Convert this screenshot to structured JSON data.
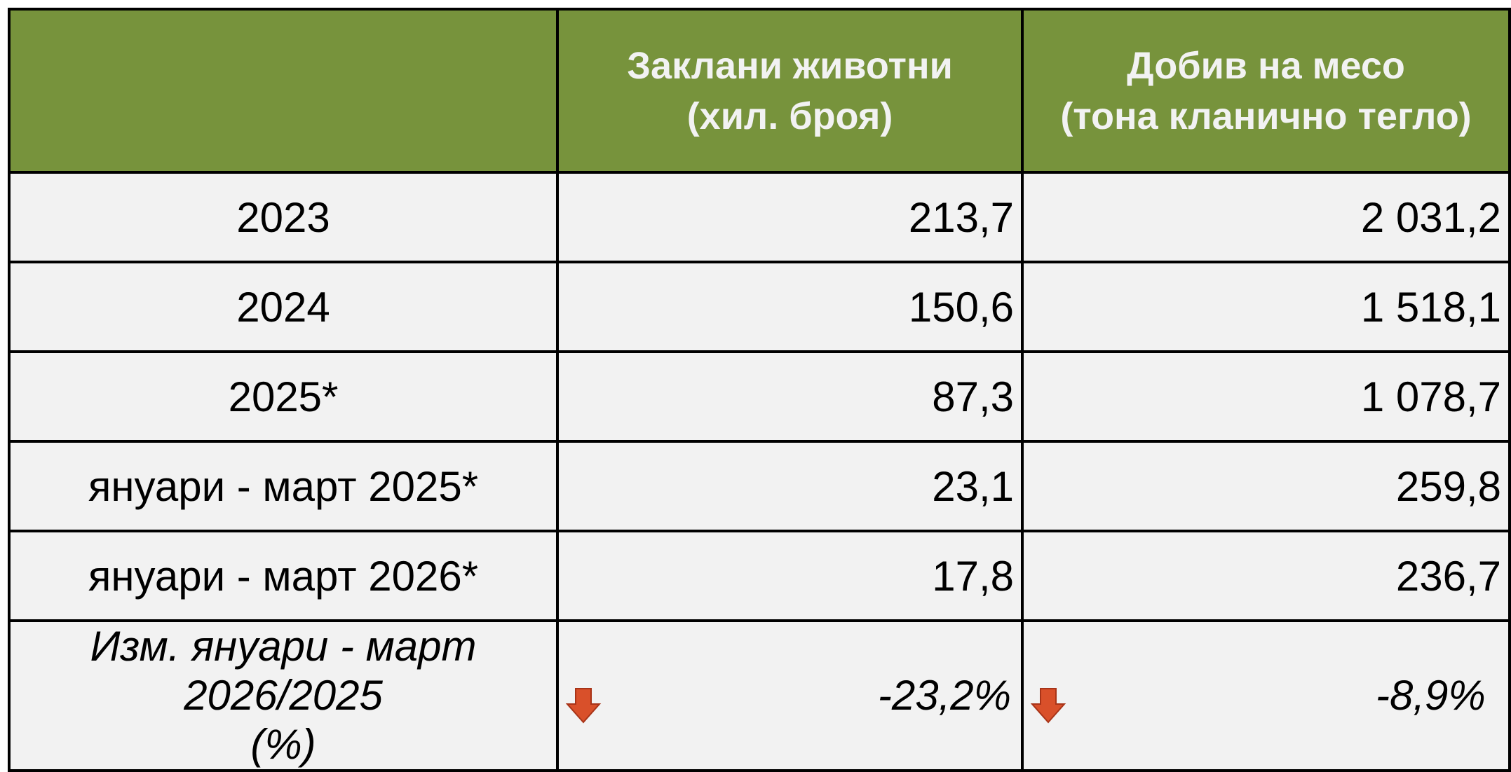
{
  "table": {
    "columns": [
      [
        "Заклани животни",
        "(хил. броя)"
      ],
      [
        "Добив на месо",
        "(тона кланично тегло)"
      ]
    ],
    "rows": [
      [
        "2023",
        "213,7",
        "2 031,2"
      ],
      [
        "2024",
        "150,6",
        "1 518,1"
      ],
      [
        "2025*",
        "87,3",
        "1 078,7"
      ],
      [
        "януари - март 2025*",
        "23,1",
        "259,8"
      ],
      [
        "януари - март 2026*",
        "17,8",
        "236,7"
      ]
    ],
    "change_row": {
      "label": [
        "Изм. януари - март 2026/2025",
        "(%)"
      ],
      "values": [
        "-23,2%",
        "-8,9%"
      ]
    }
  }
}
